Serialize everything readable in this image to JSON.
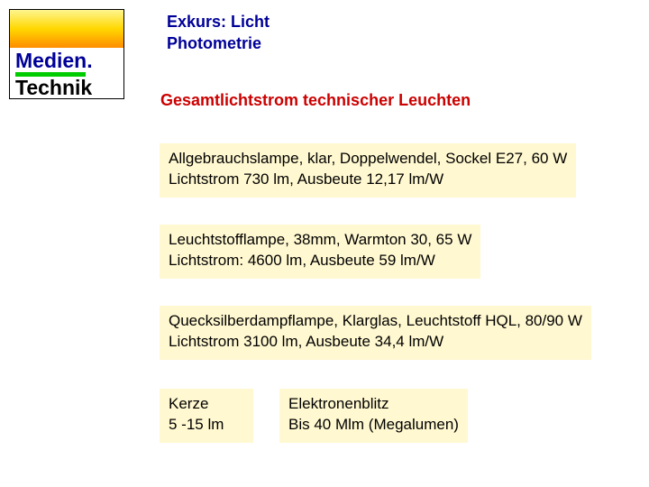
{
  "logo": {
    "line1": "Medien.",
    "line2": "Technik",
    "colors": {
      "gradient_top": "#fff68f",
      "gradient_mid": "#ffd700",
      "gradient_bottom": "#ff8c00",
      "line1_color": "#000099",
      "bar_color": "#00cc00",
      "line2_color": "#000000",
      "border_color": "#000000"
    }
  },
  "header": {
    "line1": "Exkurs: Licht",
    "line2": "Photometrie",
    "color": "#000099"
  },
  "subheading": {
    "text": "Gesamtlichtstrom technischer Leuchten",
    "color": "#cc0000"
  },
  "boxes": {
    "box1": {
      "line1": "Allgebrauchslampe, klar, Doppelwendel, Sockel E27, 60 W",
      "line2": "Lichtstrom 730 lm, Ausbeute 12,17 lm/W"
    },
    "box2": {
      "line1": "Leuchtstofflampe, 38mm, Warmton 30, 65 W",
      "line2": "Lichtstrom: 4600 lm, Ausbeute 59 lm/W"
    },
    "box3": {
      "line1": "Quecksilberdampflampe, Klarglas, Leuchtstoff HQL, 80/90 W",
      "line2": "Lichtstrom 3100 lm, Ausbeute 34,4 lm/W"
    },
    "box4": {
      "line1": "Kerze",
      "line2": "5 -15 lm"
    },
    "box5": {
      "line1": "Elektronenblitz",
      "line2": "Bis 40 Mlm (Megalumen)"
    },
    "background_color": "#fff8d0",
    "text_color": "#000000"
  }
}
